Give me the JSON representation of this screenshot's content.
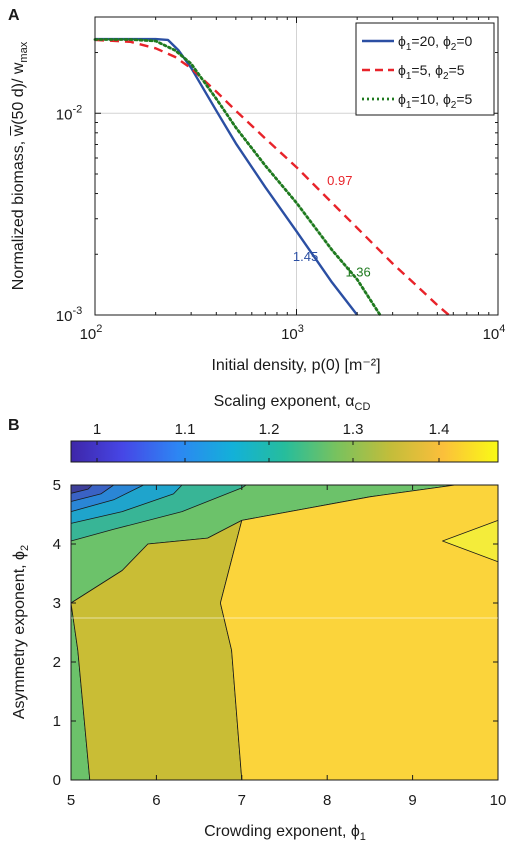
{
  "chart_data": [
    {
      "panel_label": "A",
      "type": "line",
      "xscale": "log",
      "yscale": "log",
      "xlim": [
        100,
        10000
      ],
      "ylim": [
        0.001,
        0.03
      ],
      "grid": true,
      "xlabel": "Initial density, p(0) [m⁻²]",
      "ylabel": "Normalized biomass, w̅(50 d)/ w",
      "ylabel_sub": "max",
      "x_ticks": [
        {
          "value": 100,
          "label": "10",
          "exp": "2"
        },
        {
          "value": 1000,
          "label": "10",
          "exp": "3"
        },
        {
          "value": 10000,
          "label": "10",
          "exp": "4"
        }
      ],
      "y_ticks": [
        {
          "value": 0.001,
          "label": "10",
          "exp": "-3"
        },
        {
          "value": 0.01,
          "label": "10",
          "exp": "-2"
        }
      ],
      "legend_position": "top-right",
      "series": [
        {
          "name": "ϕ1=20, ϕ2=0",
          "legend": {
            "p1": "ϕ",
            "s1": "1",
            "eq1": "=20, ",
            "p2": "ϕ",
            "s2": "2",
            "eq2": "=0"
          },
          "color": "#2b4fa3",
          "style": "solid",
          "points": [
            [
              100,
              0.0233
            ],
            [
              150,
              0.0233
            ],
            [
              200,
              0.0233
            ],
            [
              230,
              0.0231
            ],
            [
              260,
              0.0205
            ],
            [
              300,
              0.0168
            ],
            [
              400,
              0.0103
            ],
            [
              500,
              0.0071
            ],
            [
              700,
              0.0043
            ],
            [
              1000,
              0.0026
            ],
            [
              1500,
              0.00145
            ],
            [
              2000,
              0.001
            ]
          ]
        },
        {
          "name": "ϕ1=5, ϕ2=5",
          "legend": {
            "p1": "ϕ",
            "s1": "1",
            "eq1": "=5, ",
            "p2": "ϕ",
            "s2": "2",
            "eq2": "=5"
          },
          "color": "#e8232a",
          "style": "dashed",
          "points": [
            [
              100,
              0.0231
            ],
            [
              150,
              0.0226
            ],
            [
              200,
              0.021
            ],
            [
              250,
              0.019
            ],
            [
              300,
              0.0167
            ],
            [
              400,
              0.0128
            ],
            [
              500,
              0.0103
            ],
            [
              700,
              0.0075
            ],
            [
              1000,
              0.0054
            ],
            [
              1500,
              0.0036
            ],
            [
              2000,
              0.0027
            ],
            [
              3000,
              0.0018
            ],
            [
              4000,
              0.00138
            ],
            [
              5000,
              0.00112
            ],
            [
              5700,
              0.001
            ]
          ]
        },
        {
          "name": "ϕ1=10, ϕ2=5",
          "legend": {
            "p1": "ϕ",
            "s1": "1",
            "eq1": "=10, ",
            "p2": "ϕ",
            "s2": "2",
            "eq2": "=5"
          },
          "color": "#1f7a1f",
          "style": "dotted",
          "points": [
            [
              100,
              0.0232
            ],
            [
              150,
              0.0232
            ],
            [
              200,
              0.0228
            ],
            [
              250,
              0.0205
            ],
            [
              300,
              0.0176
            ],
            [
              400,
              0.0118
            ],
            [
              500,
              0.0085
            ],
            [
              700,
              0.0055
            ],
            [
              1000,
              0.0036
            ],
            [
              1500,
              0.0021
            ],
            [
              2000,
              0.0015
            ],
            [
              2600,
              0.001
            ]
          ]
        }
      ],
      "annotations": [
        {
          "text": "0.97",
          "color": "#e8232a",
          "x": 1420,
          "y": 0.0044
        },
        {
          "text": "1.45",
          "color": "#2b4fa3",
          "x": 960,
          "y": 0.00185
        },
        {
          "text": "1.36",
          "color": "#1f7a1f",
          "x": 1750,
          "y": 0.00155
        }
      ]
    },
    {
      "panel_label": "B",
      "type": "heatmap",
      "xlim": [
        5,
        10
      ],
      "ylim": [
        0,
        5
      ],
      "xlabel": "Crowding exponent, ϕ",
      "xlabel_sub": "1",
      "ylabel": "Asymmetry exponent, ϕ",
      "ylabel_sub": "2",
      "x_ticks": [
        5,
        6,
        7,
        8,
        9,
        10
      ],
      "y_ticks": [
        0,
        1,
        2,
        3,
        4,
        5
      ],
      "colorbar": {
        "title": "Scaling exponent, α",
        "title_sub": "CD",
        "range": [
          1.0,
          1.4
        ],
        "ticks": [
          "1",
          "1.1",
          "1.2",
          "1.3",
          "1.4"
        ],
        "position": "top"
      },
      "regions": [
        {
          "level": 1.26,
          "color": "#6cc26a",
          "polygon": [
            [
              5,
              0
            ],
            [
              5.22,
              0
            ],
            [
              5.08,
              2.2
            ],
            [
              5.0,
              3.0
            ],
            [
              5,
              0
            ]
          ]
        },
        {
          "level": 1.26,
          "color": "#6cc26a",
          "polygon": [
            [
              5,
              3.0
            ],
            [
              5.6,
              3.55
            ],
            [
              5.9,
              4.0
            ],
            [
              6.6,
              4.1
            ],
            [
              7.0,
              4.4
            ],
            [
              8.5,
              4.8
            ],
            [
              9.5,
              5.0
            ],
            [
              5,
              5
            ],
            [
              5,
              3.0
            ]
          ]
        },
        {
          "level": 1.34,
          "color": "#c9bd35",
          "polygon": [
            [
              5.22,
              0
            ],
            [
              7.0,
              0
            ],
            [
              6.88,
              2.2
            ],
            [
              6.75,
              3.0
            ],
            [
              7.0,
              4.4
            ],
            [
              6.6,
              4.1
            ],
            [
              5.9,
              4.0
            ],
            [
              5.6,
              3.55
            ],
            [
              5.0,
              3.0
            ],
            [
              5.08,
              2.2
            ],
            [
              5.22,
              0
            ]
          ]
        },
        {
          "level": 1.36,
          "color": "#fbd43b",
          "polygon": [
            [
              7.0,
              0
            ],
            [
              10,
              0
            ],
            [
              10,
              5
            ],
            [
              9.5,
              5.0
            ],
            [
              8.5,
              4.8
            ],
            [
              7.0,
              4.4
            ],
            [
              6.75,
              3.0
            ],
            [
              6.88,
              2.2
            ],
            [
              7.0,
              0
            ]
          ]
        },
        {
          "level": 1.38,
          "color": "#f4ec3a",
          "polygon": [
            [
              10,
              4.4
            ],
            [
              9.35,
              4.05
            ],
            [
              10,
              3.7
            ],
            [
              10,
              4.4
            ]
          ]
        },
        {
          "level": 1.2,
          "color": "#38b596",
          "polygon": [
            [
              5,
              4.05
            ],
            [
              5.5,
              4.25
            ],
            [
              6.3,
              4.55
            ],
            [
              7.0,
              4.95
            ],
            [
              7.05,
              5
            ],
            [
              5,
              5
            ]
          ]
        },
        {
          "level": 1.14,
          "color": "#1fa4cc",
          "polygon": [
            [
              5,
              4.35
            ],
            [
              5.6,
              4.55
            ],
            [
              6.2,
              4.85
            ],
            [
              6.3,
              5
            ],
            [
              5,
              5
            ]
          ]
        },
        {
          "level": 1.1,
          "color": "#2a86d6",
          "polygon": [
            [
              5,
              4.55
            ],
            [
              5.5,
              4.75
            ],
            [
              5.85,
              5
            ],
            [
              5,
              5
            ]
          ]
        },
        {
          "level": 1.06,
          "color": "#3a62c4",
          "polygon": [
            [
              5,
              4.72
            ],
            [
              5.35,
              4.85
            ],
            [
              5.5,
              5
            ],
            [
              5,
              5
            ]
          ]
        },
        {
          "level": 1.02,
          "color": "#3e3f9a",
          "polygon": [
            [
              5,
              4.86
            ],
            [
              5.2,
              4.93
            ],
            [
              5.25,
              5
            ],
            [
              5,
              5
            ]
          ]
        }
      ]
    }
  ]
}
